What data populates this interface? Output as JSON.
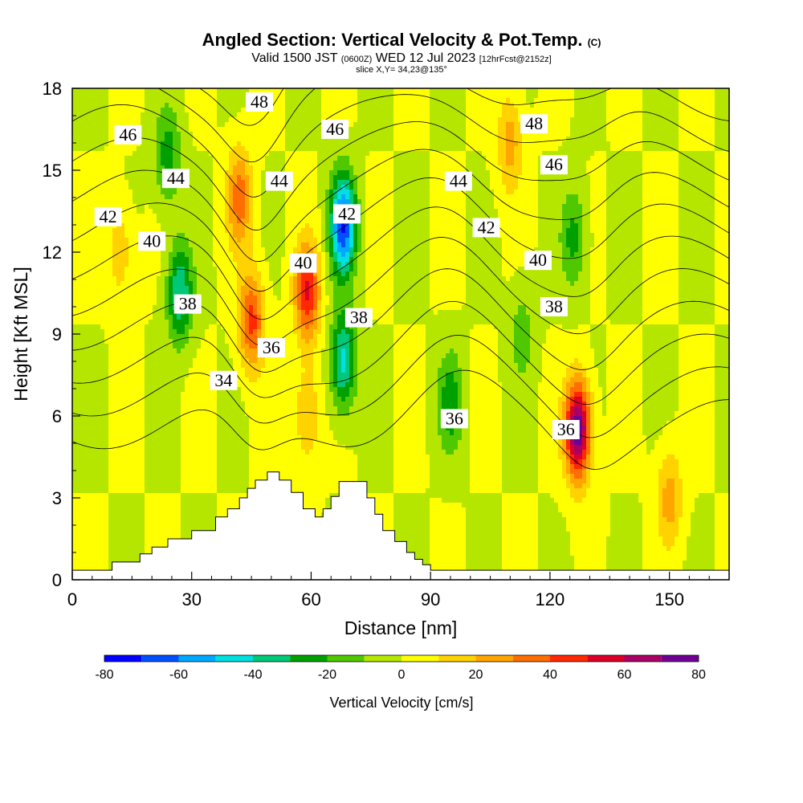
{
  "header": {
    "title": "Angled Section: Vertical Velocity & Pot.Temp.",
    "title_mark": "(C)",
    "valid_prefix": "Valid 1500 JST",
    "valid_utc": "(0600Z)",
    "valid_date": "WED 12 Jul 2023",
    "forecast": "[12hrFcst@2152z]",
    "slice": "slice X,Y= 34,23@135°"
  },
  "chart_data": {
    "type": "heatmap",
    "xlabel": "Distance [nm]",
    "ylabel": "Height [Kft MSL]",
    "xlim": [
      0,
      165
    ],
    "ylim": [
      0,
      18
    ],
    "x_ticks": [
      0,
      30,
      60,
      90,
      120,
      150
    ],
    "y_ticks": [
      0,
      3,
      6,
      9,
      12,
      15,
      18
    ],
    "colorbar": {
      "title": "Vertical Velocity [cm/s]",
      "ticks": [
        -80,
        -60,
        -40,
        -20,
        0,
        20,
        40,
        60,
        80
      ],
      "levels": [
        -80,
        -70,
        -60,
        -50,
        -40,
        -30,
        -20,
        -10,
        0,
        10,
        20,
        30,
        40,
        50,
        60,
        70,
        80
      ],
      "colors": [
        "#0000ff",
        "#0050ff",
        "#00a8ff",
        "#00e0e0",
        "#00c878",
        "#00a000",
        "#50c800",
        "#b4e600",
        "#ffff00",
        "#ffd200",
        "#ffa500",
        "#ff6e00",
        "#ff2800",
        "#dc0028",
        "#aa0064",
        "#6e0096"
      ]
    },
    "velocity_cells": [
      {
        "x": 27,
        "y": 10.5,
        "w": -40
      },
      {
        "x": 24,
        "y": 15.5,
        "w": -26
      },
      {
        "x": 68,
        "y": 13,
        "w": -70
      },
      {
        "x": 68,
        "y": 8,
        "w": -45
      },
      {
        "x": 95,
        "y": 6.5,
        "w": -26
      },
      {
        "x": 126,
        "y": 12.5,
        "w": -24
      },
      {
        "x": 113,
        "y": 9,
        "w": -15
      },
      {
        "x": 12,
        "y": 12,
        "w": 18
      },
      {
        "x": 42,
        "y": 14,
        "w": 35
      },
      {
        "x": 45,
        "y": 9.5,
        "w": 44
      },
      {
        "x": 59,
        "y": 10.5,
        "w": 50
      },
      {
        "x": 59,
        "y": 6,
        "w": 22
      },
      {
        "x": 110,
        "y": 16,
        "w": 25
      },
      {
        "x": 127,
        "y": 5.5,
        "w": 80
      },
      {
        "x": 150,
        "y": 3,
        "w": 25
      }
    ],
    "isentropes": [
      {
        "value": 34,
        "label": "34",
        "labeled": true
      },
      {
        "value": 35,
        "label": "",
        "labeled": false
      },
      {
        "value": 36,
        "label": "36",
        "labeled": true
      },
      {
        "value": 37,
        "label": "",
        "labeled": false
      },
      {
        "value": 38,
        "label": "38",
        "labeled": true
      },
      {
        "value": 39,
        "label": "",
        "labeled": false
      },
      {
        "value": 40,
        "label": "40",
        "labeled": true
      },
      {
        "value": 41,
        "label": "",
        "labeled": false
      },
      {
        "value": 42,
        "label": "42",
        "labeled": true
      },
      {
        "value": 43,
        "label": "",
        "labeled": false
      },
      {
        "value": 44,
        "label": "44",
        "labeled": true
      },
      {
        "value": 45,
        "label": "",
        "labeled": false
      },
      {
        "value": 46,
        "label": "46",
        "labeled": true
      },
      {
        "value": 47,
        "label": "",
        "labeled": false
      },
      {
        "value": 48,
        "label": "48",
        "labeled": true
      }
    ],
    "contour_labels": [
      {
        "text": "46",
        "x": 14,
        "y": 16.3
      },
      {
        "text": "44",
        "x": 26,
        "y": 14.7
      },
      {
        "text": "42",
        "x": 9,
        "y": 13.3
      },
      {
        "text": "40",
        "x": 20,
        "y": 12.4
      },
      {
        "text": "38",
        "x": 29,
        "y": 10.1
      },
      {
        "text": "36",
        "x": 50,
        "y": 8.5
      },
      {
        "text": "34",
        "x": 38,
        "y": 7.3
      },
      {
        "text": "48",
        "x": 47,
        "y": 17.5
      },
      {
        "text": "46",
        "x": 66,
        "y": 16.5
      },
      {
        "text": "44",
        "x": 52,
        "y": 14.6
      },
      {
        "text": "42",
        "x": 69,
        "y": 13.4
      },
      {
        "text": "40",
        "x": 58,
        "y": 11.6
      },
      {
        "text": "38",
        "x": 72,
        "y": 9.6
      },
      {
        "text": "44",
        "x": 97,
        "y": 14.6
      },
      {
        "text": "42",
        "x": 104,
        "y": 12.9
      },
      {
        "text": "36",
        "x": 96,
        "y": 5.9
      },
      {
        "text": "48",
        "x": 116,
        "y": 16.7
      },
      {
        "text": "46",
        "x": 121,
        "y": 15.2
      },
      {
        "text": "40",
        "x": 117,
        "y": 11.7
      },
      {
        "text": "38",
        "x": 121,
        "y": 10.0
      },
      {
        "text": "36",
        "x": 124,
        "y": 5.5
      }
    ],
    "terrain": [
      [
        0,
        0.35
      ],
      [
        10,
        0.65
      ],
      [
        17,
        0.95
      ],
      [
        20,
        1.2
      ],
      [
        24,
        1.5
      ],
      [
        30,
        1.8
      ],
      [
        36,
        2.3
      ],
      [
        39,
        2.6
      ],
      [
        42,
        3.0
      ],
      [
        44,
        3.35
      ],
      [
        46,
        3.65
      ],
      [
        49,
        3.95
      ],
      [
        52,
        3.65
      ],
      [
        55,
        3.2
      ],
      [
        58,
        2.6
      ],
      [
        61,
        2.3
      ],
      [
        63,
        2.6
      ],
      [
        65,
        3.05
      ],
      [
        67,
        3.6
      ],
      [
        71,
        3.6
      ],
      [
        74,
        3.0
      ],
      [
        76,
        2.4
      ],
      [
        78,
        1.8
      ],
      [
        81,
        1.4
      ],
      [
        84,
        1.0
      ],
      [
        86,
        0.75
      ],
      [
        88,
        0.55
      ],
      [
        90,
        0.35
      ],
      [
        165,
        0.35
      ]
    ]
  }
}
